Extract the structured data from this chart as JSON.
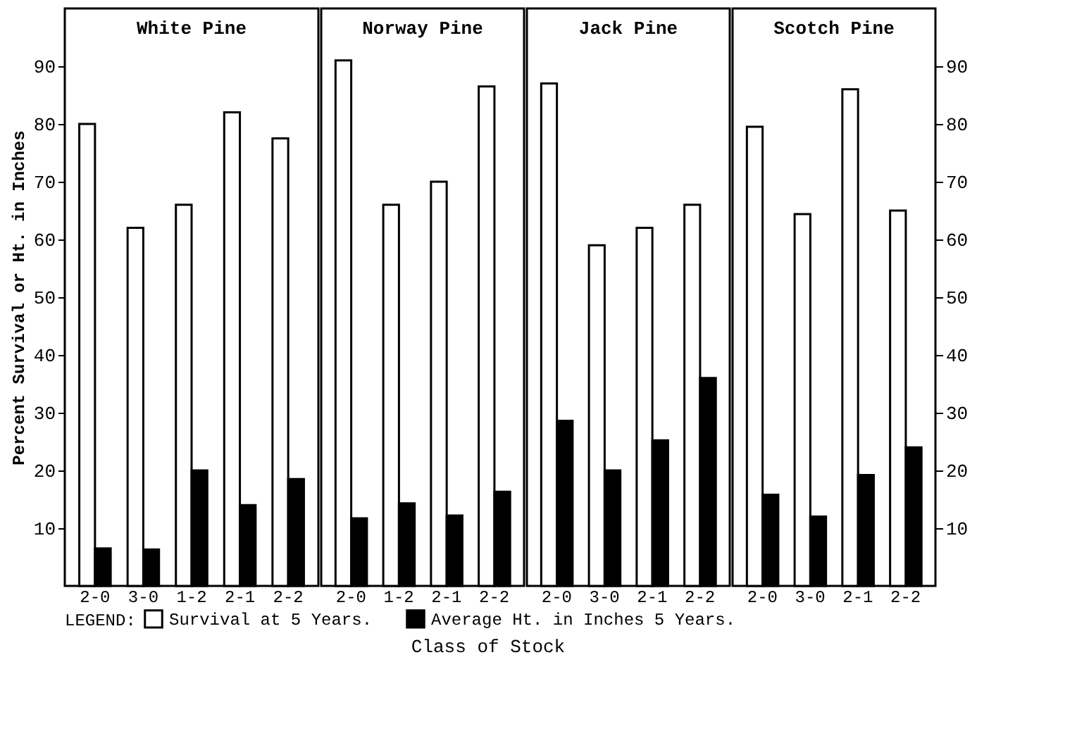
{
  "chart_data": [
    {
      "type": "bar",
      "title": "White Pine",
      "xlabel": "Class of Stock",
      "ylabel": "Percent Survival or Ht. in Inches",
      "legend_title": "LEGEND:",
      "legend": "bottom",
      "categories": [
        "2-0",
        "3-0",
        "1-2",
        "2-1",
        "2-2"
      ],
      "ylim": [
        0,
        100
      ],
      "yticks": [
        10,
        20,
        30,
        40,
        50,
        60,
        70,
        80,
        90
      ],
      "series": [
        {
          "name": "Survival at 5 Years.",
          "color": "#ffffff",
          "values": [
            80,
            62,
            66,
            82,
            77.5
          ]
        },
        {
          "name": "Average Ht. in Inches 5 Years.",
          "color": "#000000",
          "values": [
            6.5,
            6.3,
            20,
            14,
            18.5
          ]
        }
      ]
    },
    {
      "type": "bar",
      "title": "Norway Pine",
      "tick_labels": "x",
      "categories": [
        "2-0",
        "1-2",
        "2-1",
        "2-2"
      ],
      "ylim": [
        0,
        100
      ],
      "yticks": [
        10,
        20,
        30,
        40,
        50,
        60,
        70,
        80,
        90
      ],
      "series": [
        {
          "name": "Survival at 5 Years.",
          "color": "#ffffff",
          "values": [
            91,
            66,
            70,
            86.5
          ]
        },
        {
          "name": "Average Ht. in Inches 5 Years.",
          "color": "#000000",
          "values": [
            11.7,
            14.3,
            12.2,
            16.3
          ]
        }
      ]
    },
    {
      "type": "bar",
      "title": "Jack Pine",
      "tick_labels": "x",
      "categories": [
        "2-0",
        "3-0",
        "2-1",
        "2-2"
      ],
      "ylim": [
        0,
        100
      ],
      "yticks": [
        10,
        20,
        30,
        40,
        50,
        60,
        70,
        80,
        90
      ],
      "series": [
        {
          "name": "Survival at 5 Years.",
          "color": "#ffffff",
          "values": [
            87,
            59,
            62,
            66
          ]
        },
        {
          "name": "Average Ht. in Inches 5 Years.",
          "color": "#000000",
          "values": [
            28.6,
            20,
            25.2,
            36
          ]
        }
      ]
    },
    {
      "type": "bar",
      "title": "Scotch Pine",
      "categories": [
        "2-0",
        "3-0",
        "2-1",
        "2-2"
      ],
      "ylim": [
        0,
        100
      ],
      "yticks": [
        10,
        20,
        30,
        40,
        50,
        60,
        70,
        80,
        90
      ],
      "series": [
        {
          "name": "Survival at 5 Years.",
          "color": "#ffffff",
          "values": [
            79.5,
            64.4,
            86,
            65
          ]
        },
        {
          "name": "Average Ht. in Inches 5 Years.",
          "color": "#000000",
          "values": [
            15.8,
            12,
            19.2,
            24
          ]
        }
      ]
    }
  ]
}
